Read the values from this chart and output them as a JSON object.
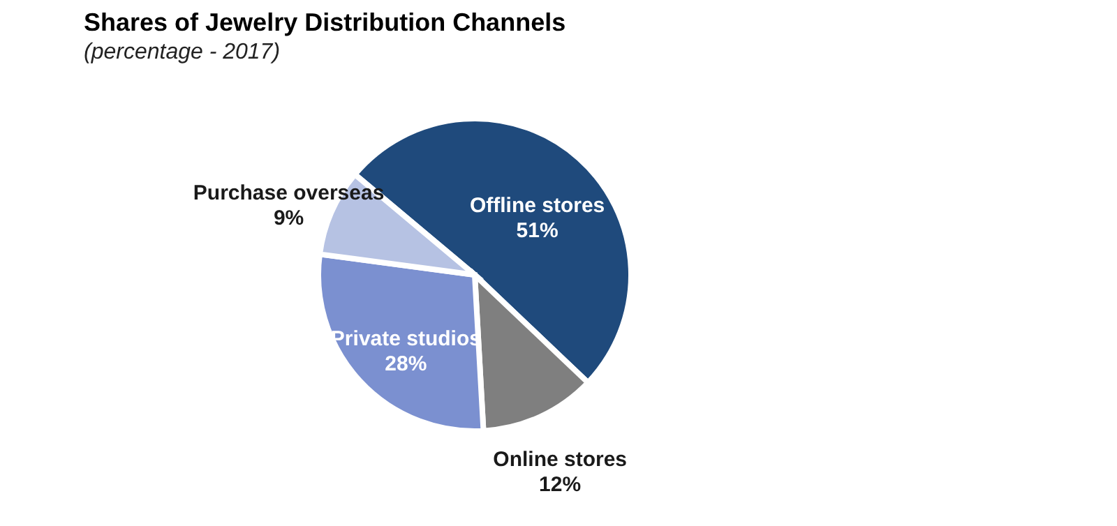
{
  "chart_data": {
    "type": "pie",
    "title": "Shares of Jewelry Distribution Channels",
    "subtitle": "(percentage - 2017)",
    "categories": [
      "Offline stores",
      "Online stores",
      "Private studios",
      "Purchase overseas"
    ],
    "values": [
      51,
      12,
      28,
      9
    ],
    "value_labels": [
      "51%",
      "12%",
      "28%",
      "9%"
    ],
    "colors": [
      "#1f4a7c",
      "#7f7f7f",
      "#7b90d0",
      "#b6c2e3"
    ],
    "legend": false
  }
}
